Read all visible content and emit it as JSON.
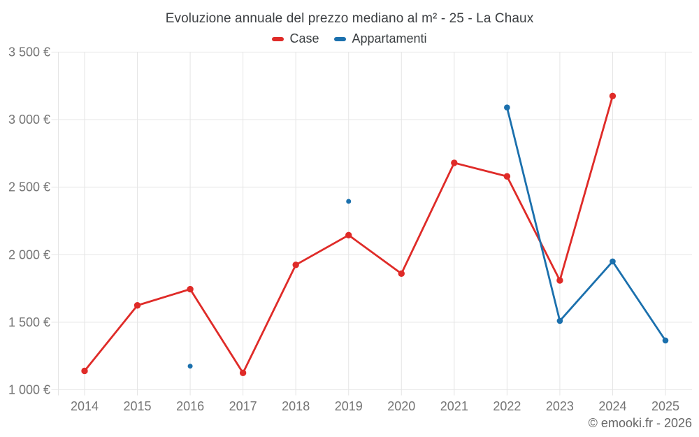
{
  "footer": {
    "credit": "© emooki.fr - 2026"
  },
  "chart_data": {
    "type": "line",
    "title": "Evoluzione annuale del prezzo mediano al m² - 25 - La Chaux",
    "categories": [
      "2014",
      "2015",
      "2016",
      "2017",
      "2018",
      "2019",
      "2020",
      "2021",
      "2022",
      "2023",
      "2024",
      "2025"
    ],
    "series": [
      {
        "name": "Case",
        "color": "#df2b28",
        "values": [
          1140,
          1625,
          1745,
          1125,
          1925,
          2145,
          1860,
          2680,
          2580,
          1810,
          3175,
          null
        ]
      },
      {
        "name": "Appartamenti",
        "color": "#1b70ad",
        "values": [
          null,
          null,
          1175,
          null,
          null,
          2395,
          null,
          null,
          3090,
          1510,
          1950,
          1365
        ]
      }
    ],
    "ylim": [
      1000,
      3500
    ],
    "yticks": [
      1000,
      1500,
      2000,
      2500,
      3000,
      3500
    ],
    "ytick_labels": [
      "1 000 €",
      "1 500 €",
      "2 000 €",
      "2 500 €",
      "3 000 €",
      "3 500 €"
    ],
    "xlabel": "",
    "ylabel": "",
    "grid": true,
    "legend_position": "top",
    "styles": {
      "background": "#ffffff",
      "grid_color": "#e5e5e5",
      "tick_label_color": "#757575",
      "title_color": "#3d4043",
      "legend_text_color": "#3c4043",
      "credit_color": "#666666"
    }
  }
}
